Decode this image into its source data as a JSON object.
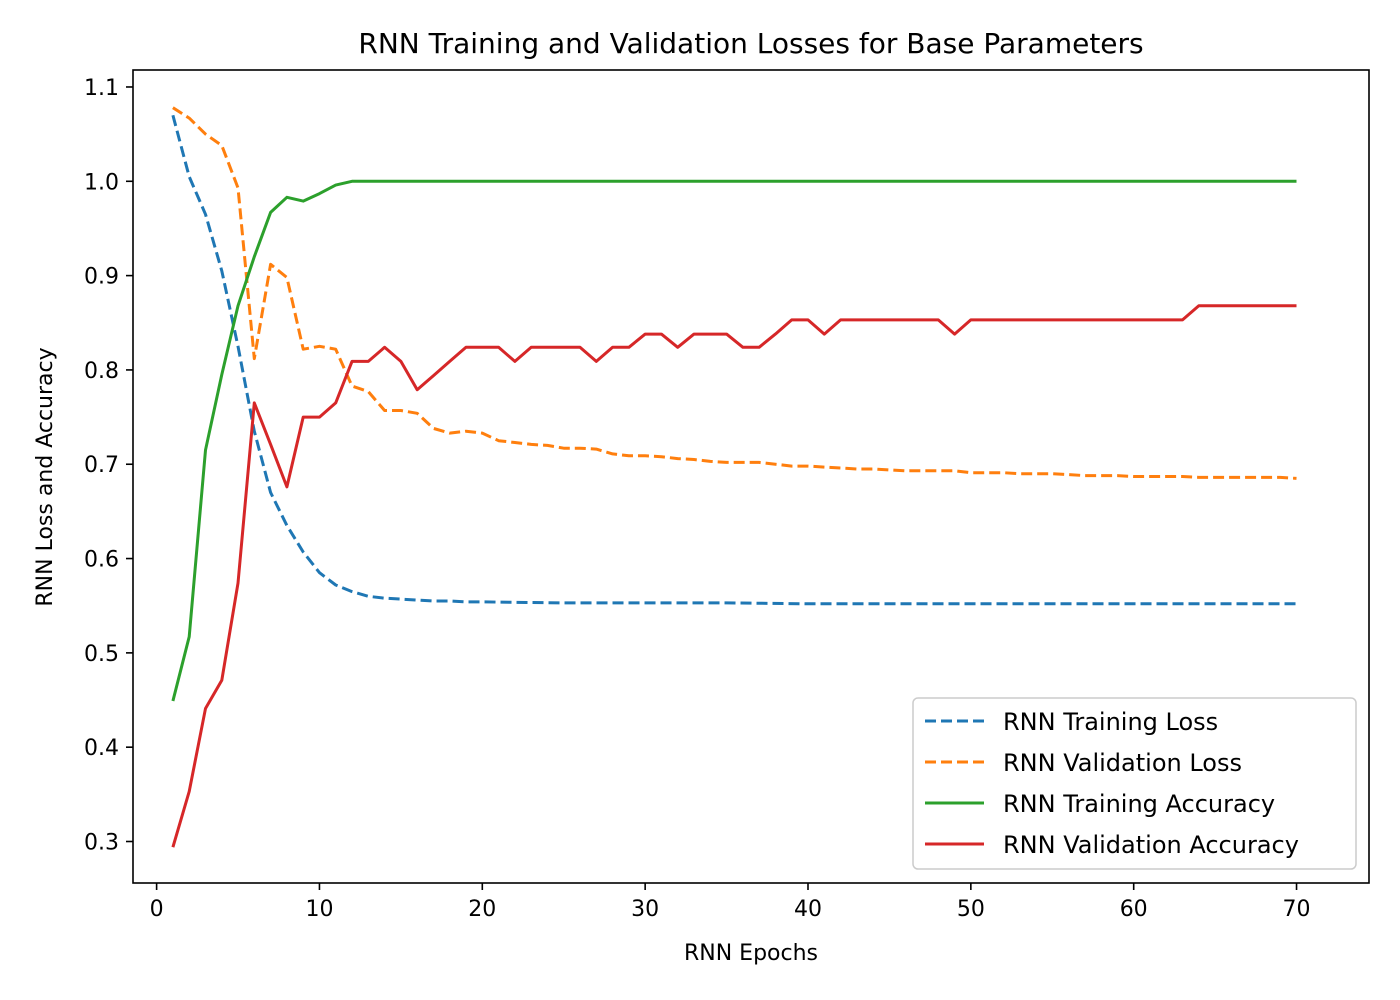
{
  "chart_data": {
    "type": "line",
    "title": "RNN Training and Validation Losses for Base Parameters",
    "xlabel": "RNN Epochs",
    "ylabel": "RNN Loss and Accuracy",
    "xlim": [
      -1.45,
      74.45
    ],
    "ylim": [
      0.256,
      1.118
    ],
    "xticks": [
      0,
      10,
      20,
      30,
      40,
      50,
      60,
      70
    ],
    "yticks": [
      0.3,
      0.4,
      0.5,
      0.6,
      0.7,
      0.8,
      0.9,
      1.0,
      1.1
    ],
    "ytick_labels": [
      "0.3",
      "0.4",
      "0.5",
      "0.6",
      "0.7",
      "0.8",
      "0.9",
      "1.0",
      "1.1"
    ],
    "grid": false,
    "legend_position": "lower-right",
    "series": [
      {
        "name": "RNN Training Loss",
        "color": "#1f77b4",
        "style": "dashed",
        "x": [
          1,
          2,
          3,
          4,
          5,
          6,
          7,
          8,
          9,
          10,
          11,
          12,
          13,
          14,
          15,
          16,
          17,
          18,
          19,
          20,
          25,
          30,
          35,
          40,
          45,
          50,
          55,
          60,
          65,
          70
        ],
        "y": [
          1.07,
          1.005,
          0.965,
          0.905,
          0.825,
          0.735,
          0.67,
          0.635,
          0.607,
          0.585,
          0.572,
          0.565,
          0.56,
          0.558,
          0.557,
          0.556,
          0.555,
          0.555,
          0.554,
          0.554,
          0.553,
          0.553,
          0.553,
          0.552,
          0.552,
          0.552,
          0.552,
          0.552,
          0.552,
          0.552
        ]
      },
      {
        "name": "RNN Validation Loss",
        "color": "#ff7f0e",
        "style": "dashed",
        "x": [
          1,
          2,
          3,
          4,
          5,
          6,
          7,
          8,
          9,
          10,
          11,
          12,
          13,
          14,
          15,
          16,
          17,
          18,
          19,
          20,
          21,
          22,
          23,
          24,
          25,
          26,
          27,
          28,
          29,
          30,
          31,
          32,
          33,
          34,
          35,
          36,
          37,
          38,
          39,
          40,
          41,
          42,
          43,
          44,
          45,
          46,
          47,
          48,
          49,
          50,
          51,
          52,
          53,
          54,
          55,
          56,
          57,
          58,
          59,
          60,
          61,
          62,
          63,
          64,
          65,
          66,
          67,
          68,
          69,
          70
        ],
        "y": [
          1.078,
          1.067,
          1.05,
          1.038,
          0.993,
          0.812,
          0.912,
          0.898,
          0.822,
          0.825,
          0.822,
          0.783,
          0.777,
          0.757,
          0.757,
          0.754,
          0.738,
          0.733,
          0.735,
          0.733,
          0.725,
          0.723,
          0.721,
          0.72,
          0.717,
          0.717,
          0.716,
          0.711,
          0.709,
          0.709,
          0.708,
          0.706,
          0.705,
          0.703,
          0.702,
          0.702,
          0.702,
          0.7,
          0.698,
          0.698,
          0.697,
          0.696,
          0.695,
          0.695,
          0.694,
          0.693,
          0.693,
          0.693,
          0.693,
          0.691,
          0.691,
          0.691,
          0.69,
          0.69,
          0.69,
          0.689,
          0.688,
          0.688,
          0.688,
          0.687,
          0.687,
          0.687,
          0.687,
          0.686,
          0.686,
          0.686,
          0.686,
          0.686,
          0.686,
          0.685
        ]
      },
      {
        "name": "RNN Training Accuracy",
        "color": "#2ca02c",
        "style": "solid",
        "x": [
          1,
          2,
          3,
          4,
          5,
          6,
          7,
          8,
          9,
          10,
          11,
          12,
          13,
          20,
          30,
          40,
          50,
          60,
          70
        ],
        "y": [
          0.449,
          0.517,
          0.715,
          0.795,
          0.868,
          0.92,
          0.967,
          0.983,
          0.979,
          0.987,
          0.996,
          1.0,
          1.0,
          1.0,
          1.0,
          1.0,
          1.0,
          1.0,
          1.0
        ]
      },
      {
        "name": "RNN Validation Accuracy",
        "color": "#d62728",
        "style": "solid",
        "x": [
          1,
          2,
          3,
          4,
          5,
          6,
          7,
          8,
          9,
          10,
          11,
          12,
          13,
          14,
          15,
          16,
          17,
          18,
          19,
          20,
          21,
          22,
          23,
          24,
          25,
          26,
          27,
          28,
          29,
          30,
          31,
          32,
          33,
          34,
          35,
          36,
          37,
          38,
          39,
          40,
          41,
          42,
          43,
          44,
          45,
          46,
          47,
          48,
          49,
          50,
          51,
          52,
          53,
          54,
          55,
          56,
          57,
          58,
          59,
          60,
          61,
          62,
          63,
          64,
          65,
          66,
          67,
          68,
          69,
          70
        ],
        "y": [
          0.294,
          0.353,
          0.441,
          0.471,
          0.574,
          0.765,
          0.721,
          0.676,
          0.75,
          0.75,
          0.765,
          0.809,
          0.809,
          0.824,
          0.809,
          0.779,
          0.794,
          0.809,
          0.824,
          0.824,
          0.824,
          0.809,
          0.824,
          0.824,
          0.824,
          0.824,
          0.809,
          0.824,
          0.824,
          0.838,
          0.838,
          0.824,
          0.838,
          0.838,
          0.838,
          0.824,
          0.824,
          0.838,
          0.853,
          0.853,
          0.838,
          0.853,
          0.853,
          0.853,
          0.853,
          0.853,
          0.853,
          0.853,
          0.838,
          0.853,
          0.853,
          0.853,
          0.853,
          0.853,
          0.853,
          0.853,
          0.853,
          0.853,
          0.853,
          0.853,
          0.853,
          0.853,
          0.853,
          0.868,
          0.868,
          0.868,
          0.868,
          0.868,
          0.868,
          0.868
        ]
      }
    ]
  }
}
